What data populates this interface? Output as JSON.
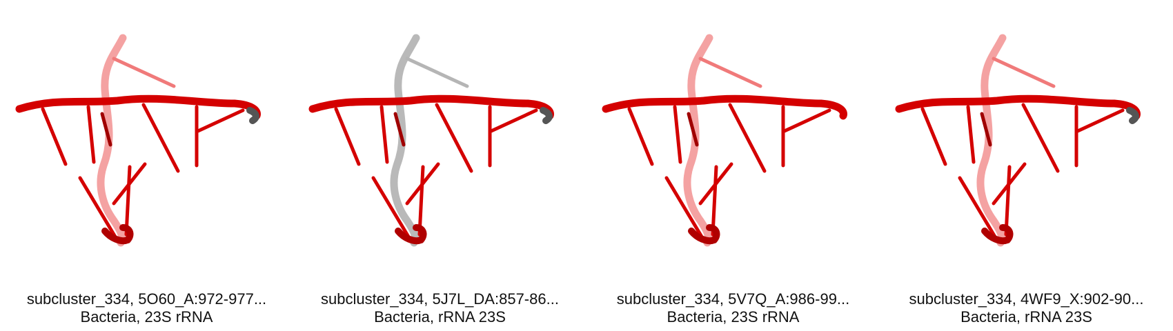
{
  "panels": [
    {
      "caption": "subcluster_334, 5O60_A:972-977...",
      "subtitle": "Bacteria, 23S rRNA",
      "gray_top": false,
      "gray_end": true
    },
    {
      "caption": "subcluster_334, 5J7L_DA:857-86...",
      "subtitle": "Bacteria, rRNA 23S",
      "gray_top": true,
      "gray_end": true
    },
    {
      "caption": "subcluster_334, 5V7Q_A:986-99...",
      "subtitle": "Bacteria, 23S rRNA",
      "gray_top": false,
      "gray_end": false
    },
    {
      "caption": "subcluster_334, 4WF9_X:902-90...",
      "subtitle": "Bacteria, rRNA 23S",
      "gray_top": false,
      "gray_end": true
    }
  ],
  "colors": {
    "strand": "#d40000",
    "strand_light": "#f07a7a",
    "gray": "#b5b5b5",
    "dark_gray": "#555555"
  }
}
